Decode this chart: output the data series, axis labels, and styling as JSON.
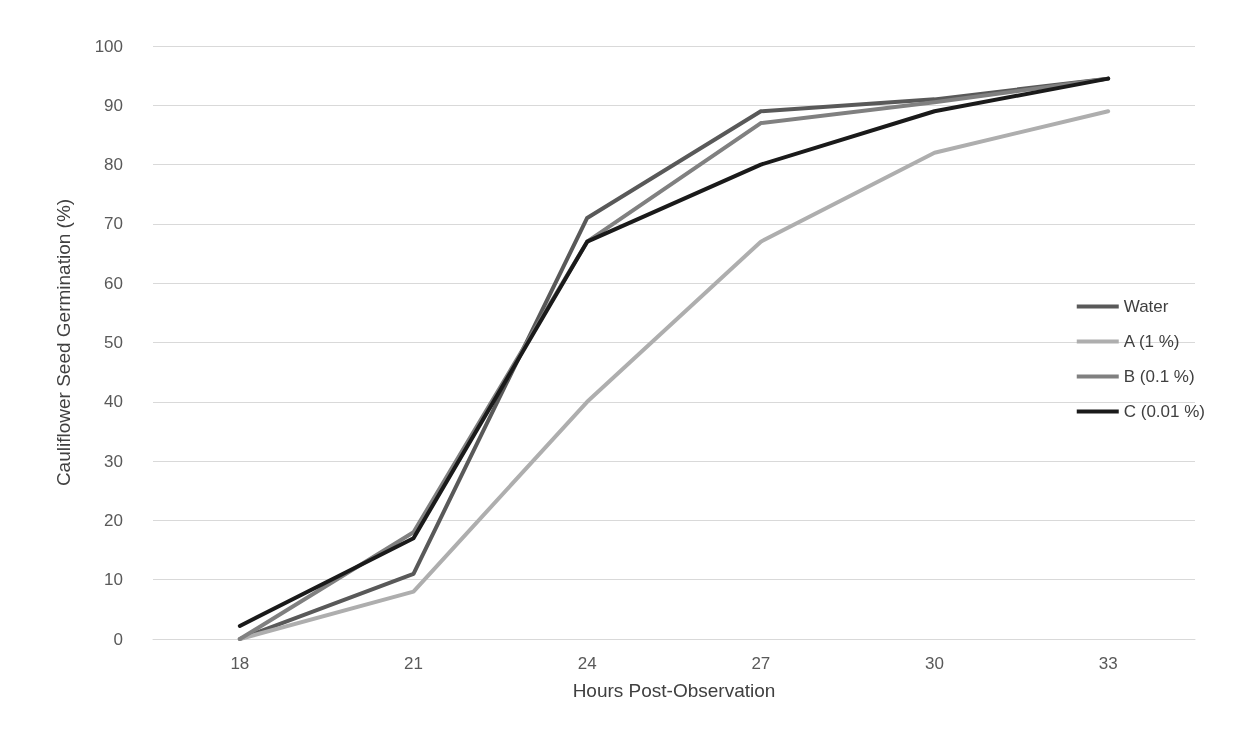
{
  "chart_data": {
    "type": "line",
    "xlabel": "Hours Post-Observation",
    "ylabel": "Cauliflower Seed Germination (%)",
    "categories": [
      "18",
      "21",
      "24",
      "27",
      "30",
      "33"
    ],
    "series": [
      {
        "name": "Water",
        "color": "#595959",
        "values": [
          0,
          11,
          71,
          89,
          91,
          94.5
        ]
      },
      {
        "name": "A (1 %)",
        "color": "#aeaeae",
        "values": [
          0,
          8,
          40,
          67,
          82,
          89
        ]
      },
      {
        "name": "B (0.1 %)",
        "color": "#808080",
        "values": [
          0,
          18,
          67,
          87,
          90.5,
          94.5
        ]
      },
      {
        "name": "C (0.01 %)",
        "color": "#1a1a1a",
        "values": [
          2.2,
          17,
          67,
          80,
          89,
          94.5
        ]
      }
    ],
    "ylim": [
      0,
      100
    ],
    "yticks": [
      0,
      10,
      20,
      30,
      40,
      50,
      60,
      70,
      80,
      90,
      100
    ],
    "grid": "y",
    "legend": "right",
    "marker": "none",
    "line_style": "solid"
  }
}
